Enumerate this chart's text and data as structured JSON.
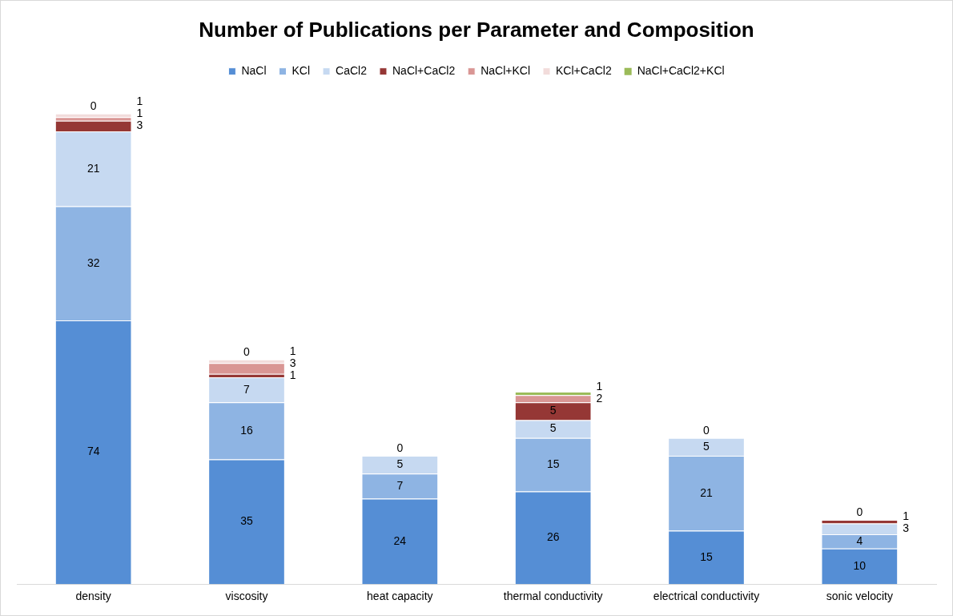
{
  "chart_data": {
    "type": "bar",
    "title": "Number of Publications per Parameter and Composition",
    "categories": [
      "density",
      "viscosity",
      "heat capacity",
      "thermal conductivity",
      "electrical conductivity",
      "sonic velocity"
    ],
    "stacked": true,
    "legend": "top",
    "grid": false,
    "tick_labels": "x",
    "series": [
      {
        "name": "NaCl",
        "color": "#558ed5",
        "values": [
          74,
          35,
          24,
          26,
          15,
          10
        ],
        "value_labels": [
          "74",
          "35",
          "24",
          "26",
          "15",
          "10"
        ]
      },
      {
        "name": "KCl",
        "color": "#8eb4e3",
        "values": [
          32,
          16,
          7,
          15,
          21,
          4
        ],
        "value_labels": [
          "32",
          "16",
          "7",
          "15",
          "21",
          "4"
        ]
      },
      {
        "name": "CaCl2",
        "color": "#c6d9f1",
        "values": [
          21,
          7,
          5,
          5,
          5,
          3
        ],
        "value_labels": [
          "21",
          "7",
          "5",
          "5",
          "5",
          "3"
        ]
      },
      {
        "name": "NaCl+CaCl2",
        "color": "#953735",
        "values": [
          3,
          1,
          0,
          5,
          0,
          1
        ],
        "value_labels": [
          "3",
          "1",
          null,
          "5",
          null,
          "1"
        ]
      },
      {
        "name": "NaCl+KCl",
        "color": "#d99694",
        "values": [
          1,
          3,
          0,
          2,
          0,
          0
        ],
        "value_labels": [
          "1",
          "3",
          null,
          "2",
          null,
          null
        ]
      },
      {
        "name": "KCl+CaCl2",
        "color": "#f2dcdb",
        "values": [
          1,
          1,
          0,
          0,
          0,
          0
        ],
        "value_labels": [
          "1",
          "1",
          null,
          null,
          null,
          null
        ]
      },
      {
        "name": "NaCl+CaCl2+KCl",
        "color": "#9bbb59",
        "values": [
          0,
          0,
          0,
          1,
          0,
          0
        ],
        "value_labels": [
          "0",
          "0",
          "0",
          "1",
          "0",
          "0"
        ]
      }
    ]
  }
}
